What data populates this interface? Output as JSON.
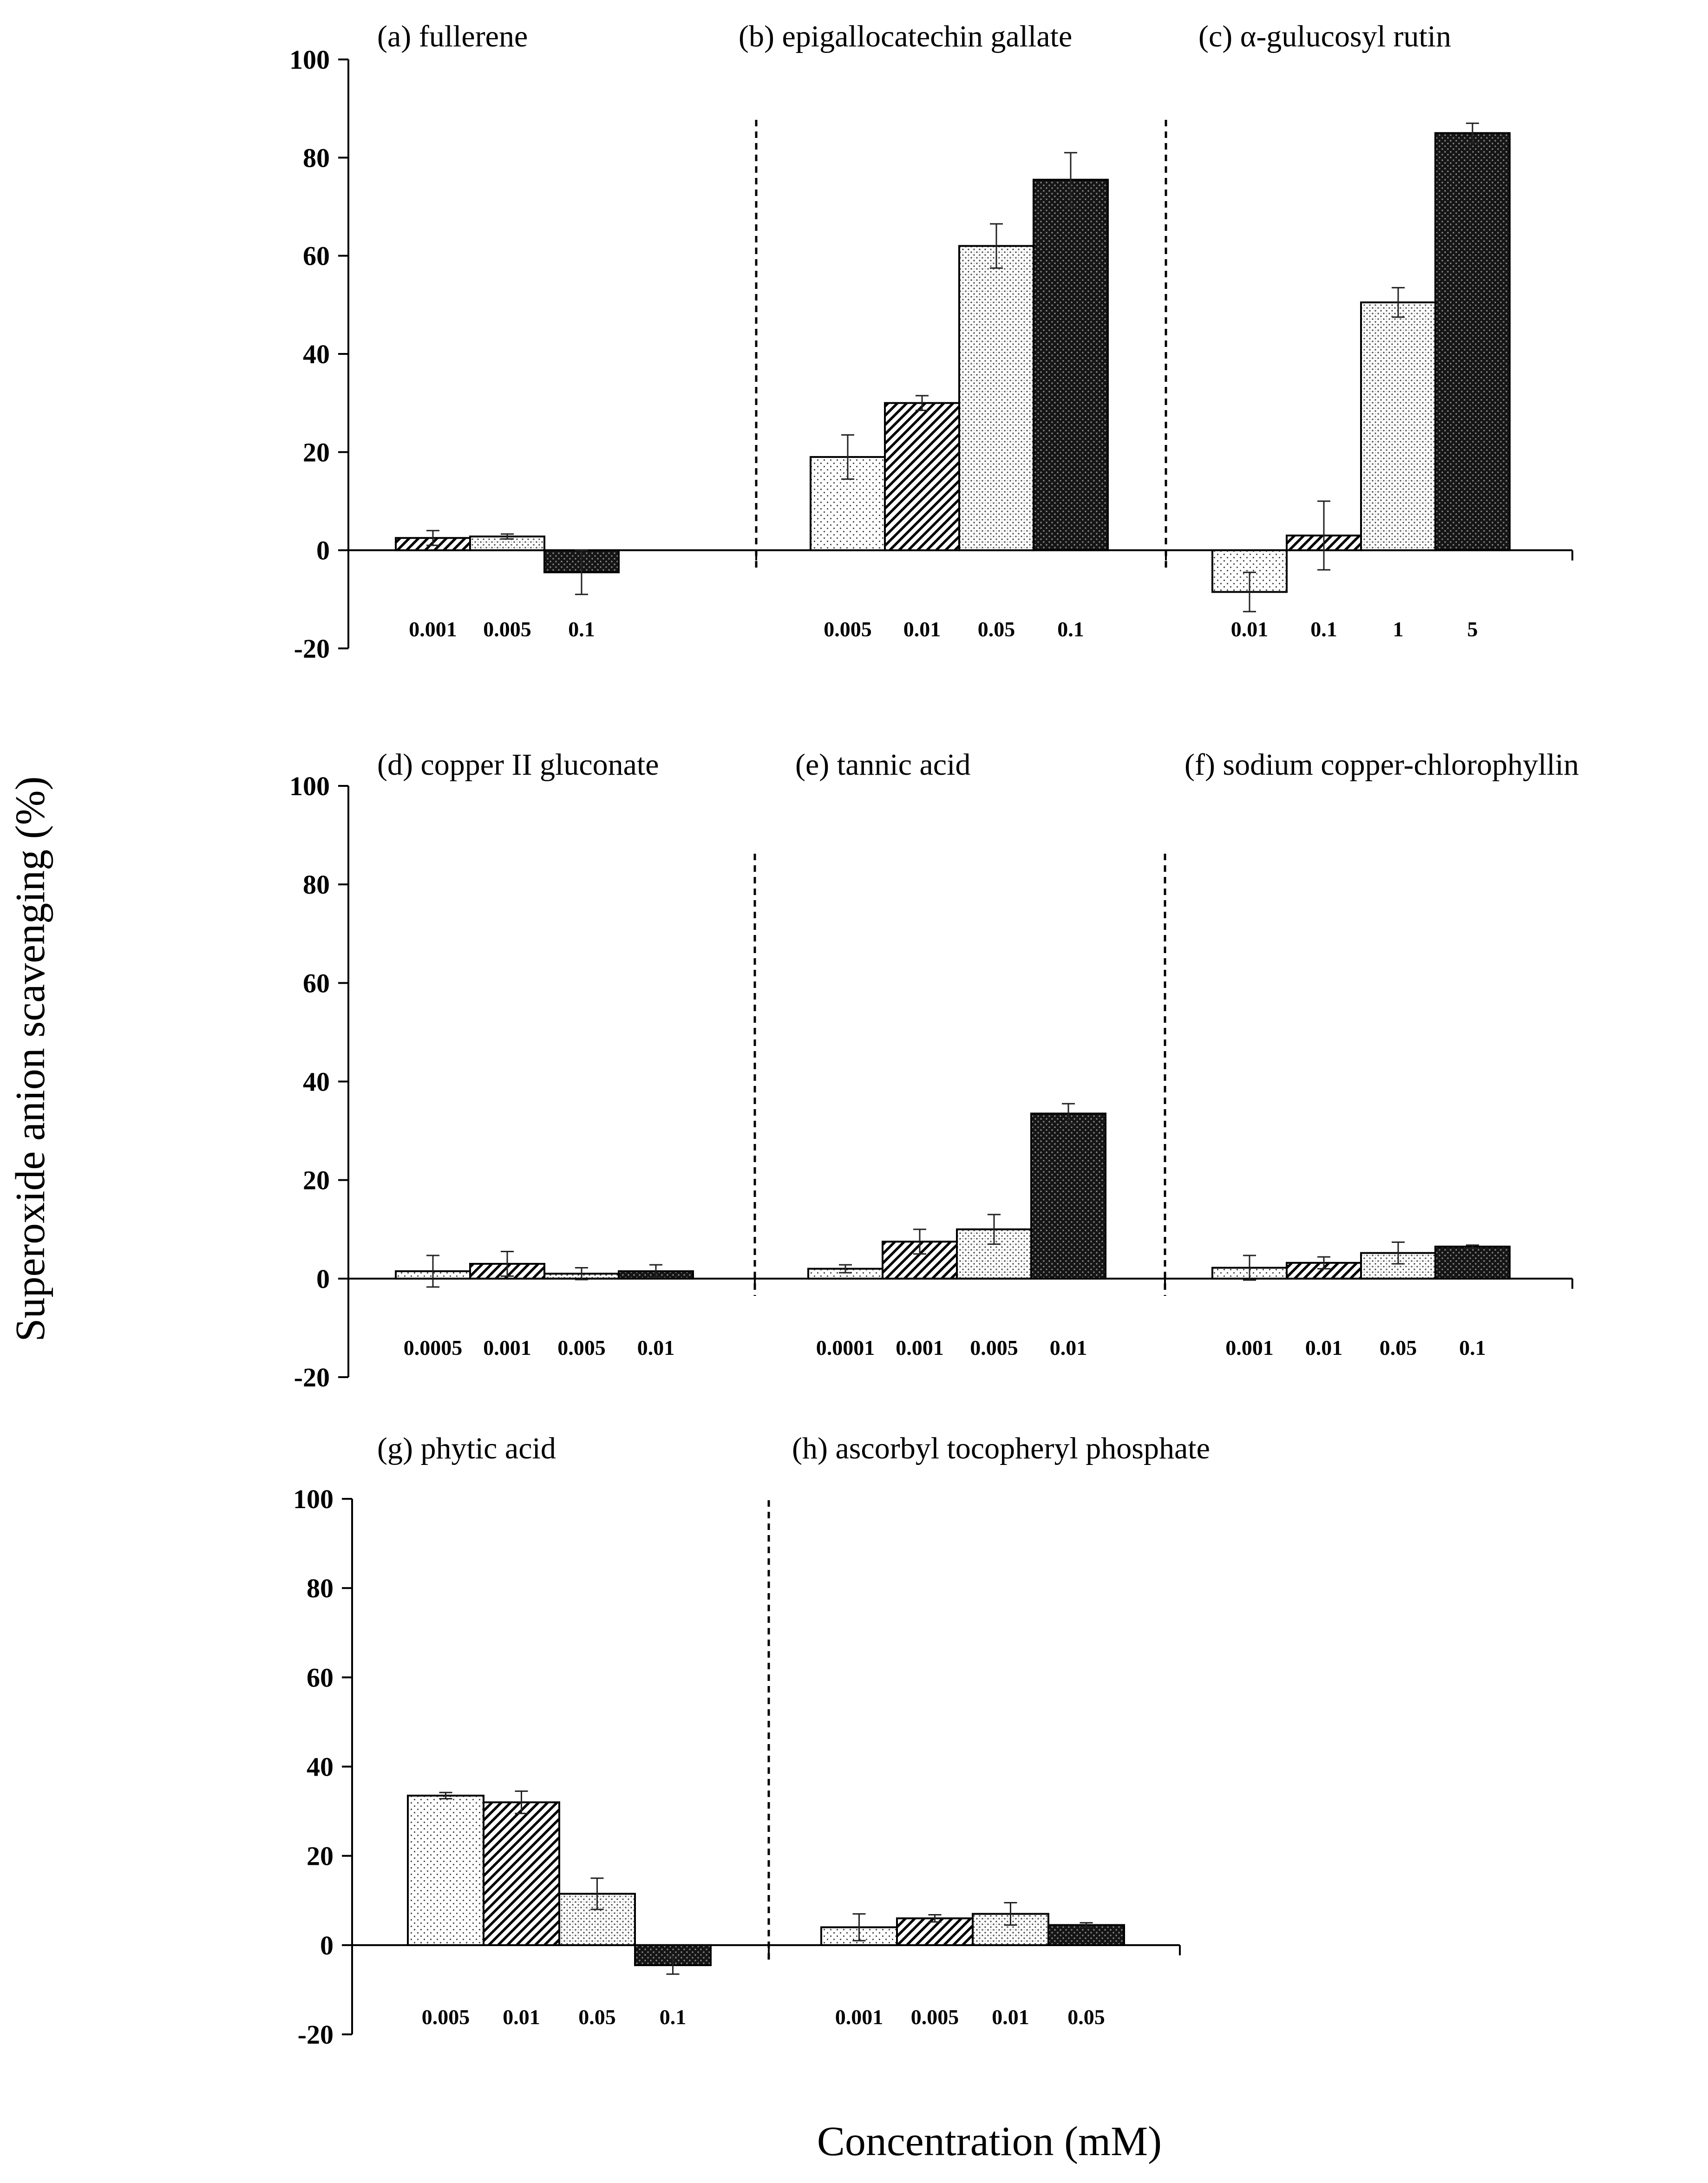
{
  "figure": {
    "ylabel": "Superoxide anion scavenging (%)",
    "xlabel": "Concentration (mM)"
  },
  "chart_data": [
    {
      "type": "bar",
      "ylim": [
        -20,
        100
      ],
      "yticks": [
        "100",
        "80",
        "60",
        "40",
        "20",
        "0",
        "-20"
      ],
      "panels": [
        {
          "title": "(a) fullerene",
          "categories": [
            "0.001",
            "0.005",
            "0.1"
          ],
          "values": [
            2.5,
            2.8,
            -4.5
          ],
          "errors": [
            1.5,
            0.5,
            4.5
          ]
        },
        {
          "title": "(b) epigallocatechin gallate",
          "categories": [
            "0.005",
            "0.01",
            "0.05",
            "0.1"
          ],
          "values": [
            19,
            30,
            62,
            75.5
          ],
          "errors": [
            4.5,
            1.5,
            4.5,
            5.5
          ]
        },
        {
          "title": "(c) α-gulucosyl rutin",
          "categories": [
            "0.01",
            "0.1",
            "1",
            "5"
          ],
          "values": [
            -8.5,
            3,
            50.5,
            85
          ],
          "errors": [
            4,
            7,
            3,
            2
          ]
        }
      ]
    },
    {
      "type": "bar",
      "ylim": [
        -20,
        100
      ],
      "yticks": [
        "100",
        "80",
        "60",
        "40",
        "20",
        "0",
        "-20"
      ],
      "panels": [
        {
          "title": "(d) copper II gluconate",
          "categories": [
            "0.0005",
            "0.001",
            "0.005",
            "0.01"
          ],
          "values": [
            1.5,
            3,
            1,
            1.5
          ],
          "errors": [
            3.2,
            2.5,
            1.2,
            1.3
          ]
        },
        {
          "title": "(e) tannic acid",
          "categories": [
            "0.0001",
            "0.001",
            "0.005",
            "0.01"
          ],
          "values": [
            2,
            7.5,
            10,
            33.5
          ],
          "errors": [
            0.8,
            2.5,
            3,
            2
          ]
        },
        {
          "title": "(f) sodium copper-chlorophyllin",
          "categories": [
            "0.001",
            "0.01",
            "0.05",
            "0.1"
          ],
          "values": [
            2.2,
            3.2,
            5.2,
            6.5
          ],
          "errors": [
            2.5,
            1.2,
            2.2,
            0.3
          ]
        }
      ]
    },
    {
      "type": "bar",
      "ylim": [
        -20,
        100
      ],
      "yticks": [
        "100",
        "80",
        "60",
        "40",
        "20",
        "0",
        "-20"
      ],
      "panels": [
        {
          "title": "(g) phytic acid",
          "categories": [
            "0.005",
            "0.01",
            "0.05",
            "0.1"
          ],
          "values": [
            33.5,
            32,
            11.5,
            -4.5
          ],
          "errors": [
            0.7,
            2.5,
            3.5,
            2
          ]
        },
        {
          "title": "(h) ascorbyl tocopheryl phosphate",
          "categories": [
            "0.001",
            "0.005",
            "0.01",
            "0.05"
          ],
          "values": [
            4,
            6,
            7,
            4.5
          ],
          "errors": [
            3,
            0.8,
            2.5,
            0.5
          ]
        }
      ]
    }
  ]
}
